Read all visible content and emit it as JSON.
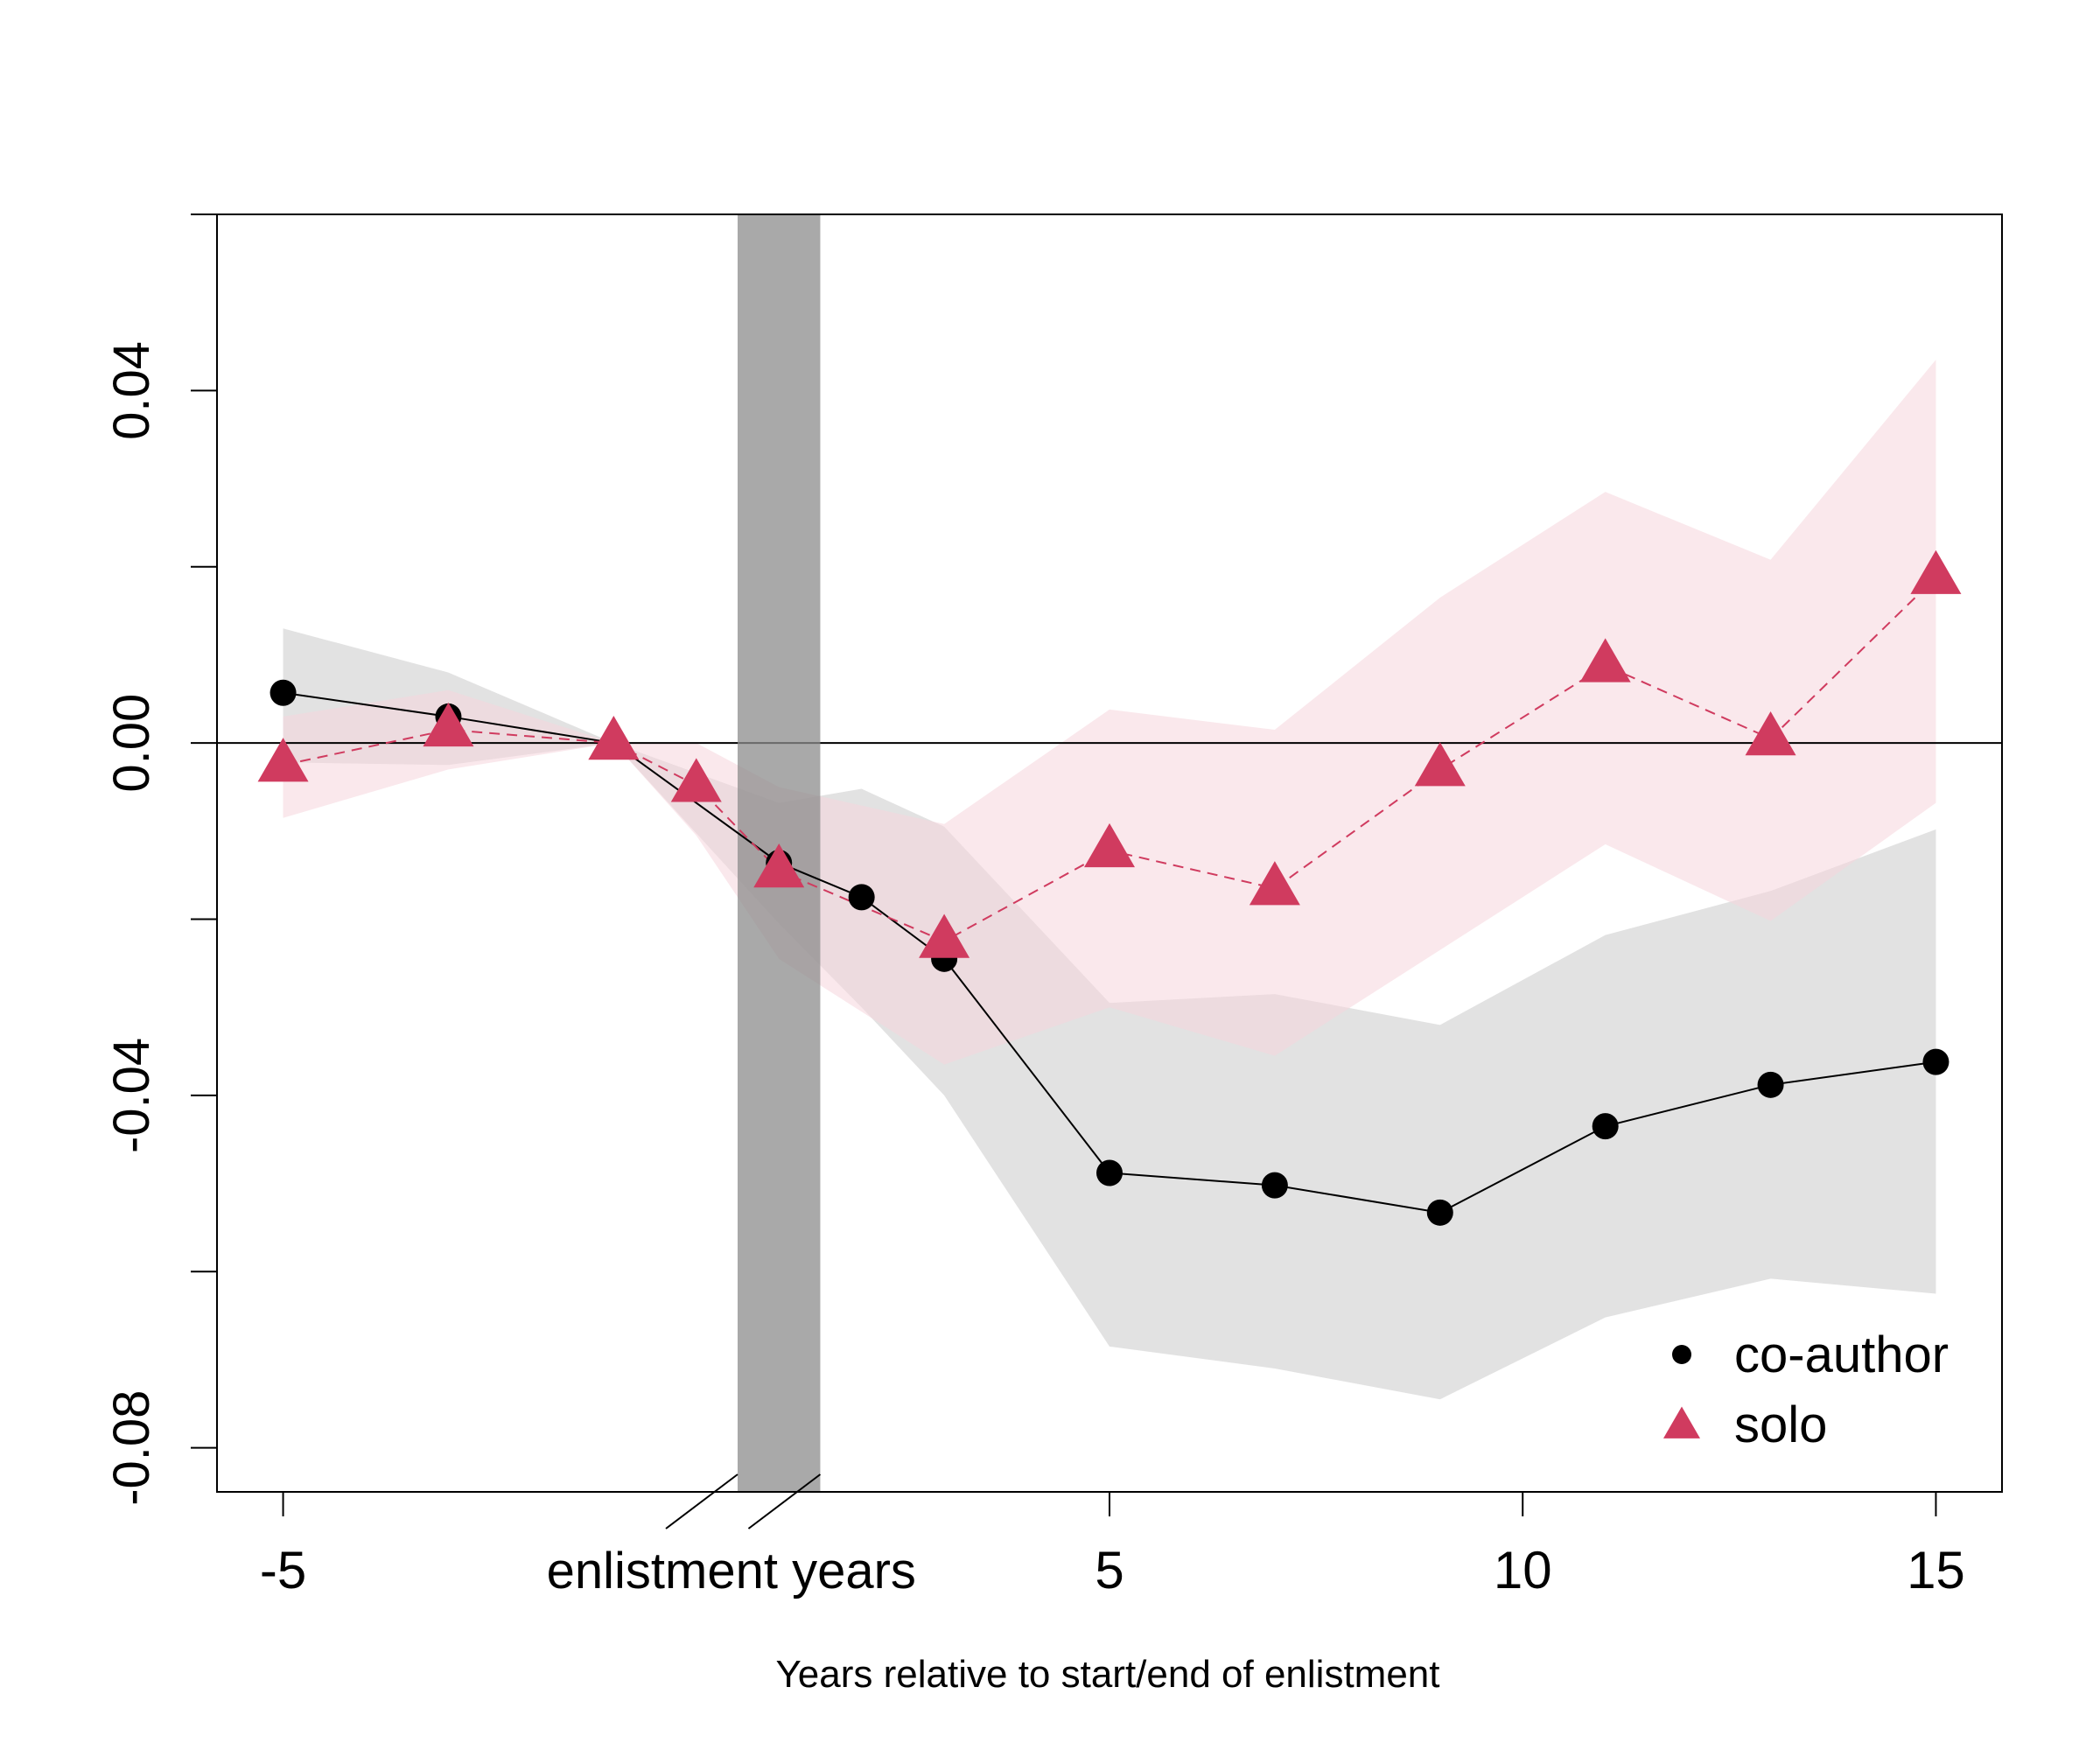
{
  "chart_data": {
    "type": "line",
    "title": "",
    "xlabel": "Years relative to start/end of enlistment",
    "ylabel": "",
    "xlim": [
      -5.8,
      15.8
    ],
    "ylim": [
      -0.085,
      0.06
    ],
    "x_ticks": [
      {
        "value": -5,
        "label": "-5"
      },
      {
        "value": 5,
        "label": "5"
      },
      {
        "value": 10,
        "label": "10"
      },
      {
        "value": 15,
        "label": "15"
      }
    ],
    "enlistment_label": "enlistment years",
    "enlistment_label_x": 0,
    "enlistment_band": [
      0.5,
      1.5
    ],
    "y_ticks": [
      0.06,
      0.04,
      0.02,
      0.0,
      -0.02,
      -0.04,
      -0.06,
      -0.08
    ],
    "y_tick_labels": [
      {
        "value": 0.04,
        "label": "0.04"
      },
      {
        "value": 0.0,
        "label": "0.00"
      },
      {
        "value": -0.04,
        "label": "-0.04"
      },
      {
        "value": -0.08,
        "label": "-0.08"
      }
    ],
    "axis_break_marks": [
      0.5,
      1.5
    ],
    "reference_line": 0.0,
    "grid": false,
    "legend_position": "bottom-right",
    "series": [
      {
        "name": "co-author",
        "marker": "circle",
        "line_style": "solid",
        "color": "#000000",
        "band_color": "#d3d3d3",
        "x": [
          -5,
          -3,
          -1,
          1,
          2,
          3,
          5,
          7,
          9,
          11,
          13,
          15
        ],
        "y": [
          0.0057,
          0.003,
          0.0,
          -0.0136,
          -0.0175,
          -0.0245,
          -0.0488,
          -0.0502,
          -0.0533,
          -0.0435,
          -0.0388,
          -0.0362
        ],
        "ci_lower": [
          -0.0022,
          -0.0025,
          0.0,
          -0.0205,
          -0.03,
          -0.04,
          -0.0685,
          -0.071,
          -0.0745,
          -0.0652,
          -0.0608,
          -0.0625
        ],
        "ci_upper": [
          0.013,
          0.008,
          0.0,
          -0.0068,
          -0.0052,
          -0.0095,
          -0.0295,
          -0.0285,
          -0.032,
          -0.0218,
          -0.0168,
          -0.0098
        ]
      },
      {
        "name": "solo",
        "marker": "triangle",
        "line_style": "dashed",
        "color": "#d03b5f",
        "band_color": "#f6d5dc",
        "x": [
          -5,
          -3,
          -1,
          0,
          1,
          3,
          5,
          7,
          9,
          11,
          13,
          15
        ],
        "y": [
          -0.0025,
          0.0015,
          0.0,
          -0.0048,
          -0.0145,
          -0.0225,
          -0.0122,
          -0.0165,
          -0.003,
          0.0088,
          0.0005,
          0.0188
        ],
        "ci_lower": [
          -0.0085,
          -0.003,
          0.0,
          -0.0105,
          -0.0245,
          -0.0365,
          -0.03,
          -0.0355,
          -0.0235,
          -0.0115,
          -0.0202,
          -0.0068
        ],
        "ci_upper": [
          0.003,
          0.006,
          0.0,
          0.0,
          -0.005,
          -0.0092,
          0.0038,
          0.0015,
          0.0165,
          0.0285,
          0.0208,
          0.0435
        ]
      }
    ]
  }
}
